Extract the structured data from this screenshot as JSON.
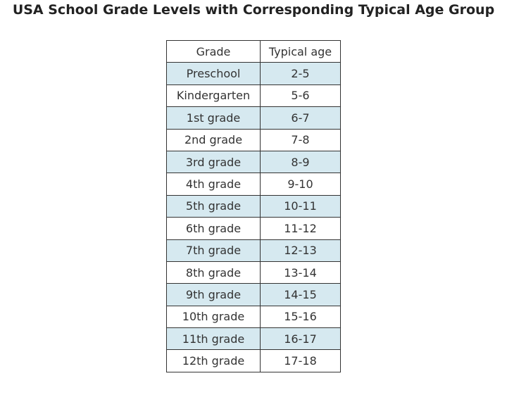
{
  "title": "USA School Grade Levels with Corresponding Typical Age Group",
  "table": {
    "header": [
      "Grade",
      "Typical age"
    ],
    "rows": [
      [
        "Preschool",
        "2-5"
      ],
      [
        "Kindergarten",
        "5-6"
      ],
      [
        "1st grade",
        "6-7"
      ],
      [
        "2nd grade",
        "7-8"
      ],
      [
        "3rd grade",
        "8-9"
      ],
      [
        "4th grade",
        "9-10"
      ],
      [
        "5th grade",
        "10-11"
      ],
      [
        "6th grade",
        "11-12"
      ],
      [
        "7th grade",
        "12-13"
      ],
      [
        "8th grade",
        "13-14"
      ],
      [
        "9th grade",
        "14-15"
      ],
      [
        "10th grade",
        "15-16"
      ],
      [
        "11th grade",
        "16-17"
      ],
      [
        "12th grade",
        "17-18"
      ]
    ]
  }
}
